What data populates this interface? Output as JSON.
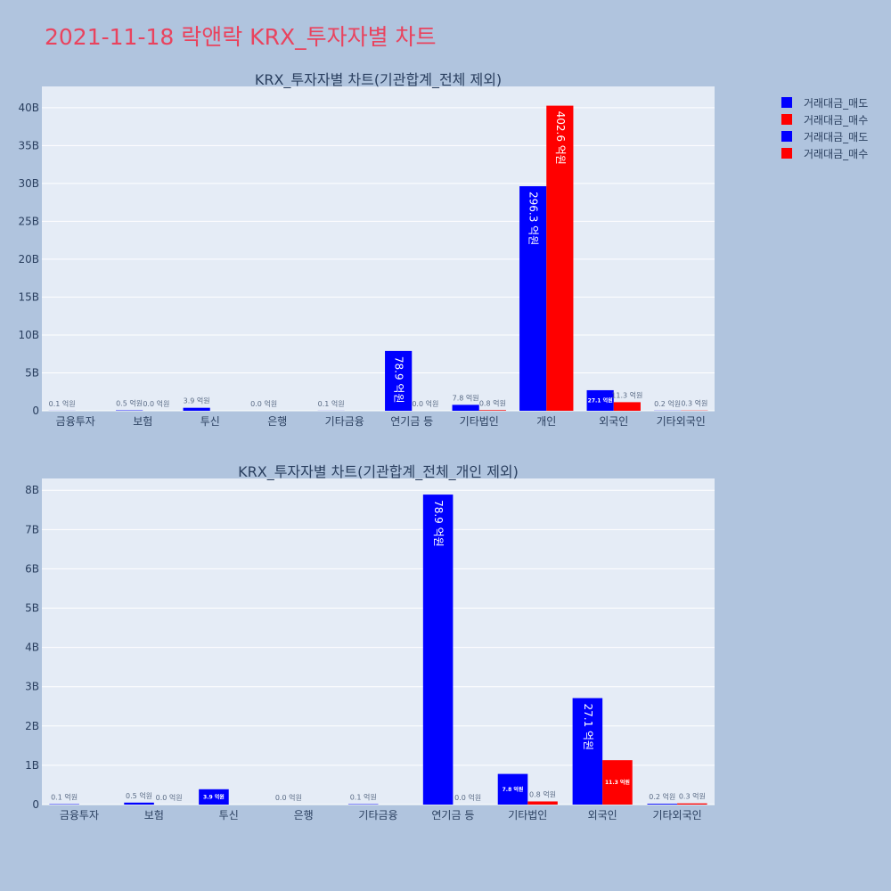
{
  "page": {
    "title": "2021-11-18 락앤락 KRX_투자자별 차트",
    "background": "#b0c4de",
    "title_color": "#e9435e"
  },
  "legend": {
    "items": [
      {
        "label": "거래대금_매도",
        "color": "#0000ff"
      },
      {
        "label": "거래대금_매수",
        "color": "#ff0000"
      },
      {
        "label": "거래대금_매도",
        "color": "#0000ff"
      },
      {
        "label": "거래대금_매수",
        "color": "#ff0000"
      }
    ]
  },
  "chart_data": [
    {
      "type": "bar",
      "title": "KRX_투자자별 차트(기관합계_전체 제외)",
      "categories": [
        "금융투자",
        "보험",
        "투신",
        "은행",
        "기타금융",
        "연기금 등",
        "기타법인",
        "개인",
        "외국인",
        "기타외국인"
      ],
      "series": [
        {
          "name": "거래대금_매도",
          "color": "#0000ff",
          "values": [
            0.01,
            0.05,
            0.39,
            0.0,
            0.01,
            7.89,
            0.78,
            29.63,
            2.71,
            0.02
          ],
          "labels": [
            "0.1 억원",
            "0.5 억원",
            "3.9 억원",
            "0.0 억원",
            "0.1 억원",
            "78.9 억원",
            "7.8 억원",
            "296.3 억원",
            "27.1 억원",
            "0.2 억원"
          ]
        },
        {
          "name": "거래대금_매수",
          "color": "#ff0000",
          "values": [
            0.0,
            0.0,
            0.0,
            0.0,
            0.0,
            0.0,
            0.08,
            40.26,
            1.13,
            0.03
          ],
          "labels": [
            "",
            "0.0 억원",
            "",
            "",
            "",
            "0.0 억원",
            "0.8 억원",
            "402.6 억원",
            "11.3 억원",
            "0.3 억원"
          ]
        }
      ],
      "yticks": [
        0,
        5,
        10,
        15,
        20,
        25,
        30,
        35,
        40
      ],
      "ytick_labels": [
        "0",
        "5B",
        "10B",
        "15B",
        "20B",
        "25B",
        "30B",
        "35B",
        "40B"
      ],
      "ylim": [
        0,
        42.8
      ],
      "grid": true,
      "legend": "top-right"
    },
    {
      "type": "bar",
      "title": "KRX_투자자별 차트(기관합계_전체_개인 제외)",
      "categories": [
        "금융투자",
        "보험",
        "투신",
        "은행",
        "기타금융",
        "연기금 등",
        "기타법인",
        "외국인",
        "기타외국인"
      ],
      "series": [
        {
          "name": "거래대금_매도",
          "color": "#0000ff",
          "values": [
            0.01,
            0.05,
            0.39,
            0.0,
            0.01,
            7.89,
            0.78,
            2.71,
            0.02
          ],
          "labels": [
            "0.1 억원",
            "0.5 억원",
            "3.9 억원",
            "0.0 억원",
            "0.1 억원",
            "78.9 억원",
            "7.8 억원",
            "27.1 억원",
            "0.2 억원"
          ]
        },
        {
          "name": "거래대금_매수",
          "color": "#ff0000",
          "values": [
            0.0,
            0.0,
            0.0,
            0.0,
            0.0,
            0.0,
            0.08,
            1.13,
            0.03
          ],
          "labels": [
            "",
            "0.0 억원",
            "",
            "",
            "",
            "0.0 억원",
            "0.8 억원",
            "11.3 억원",
            "0.3 억원"
          ]
        }
      ],
      "yticks": [
        0,
        1,
        2,
        3,
        4,
        5,
        6,
        7,
        8
      ],
      "ytick_labels": [
        "0",
        "1B",
        "2B",
        "3B",
        "4B",
        "5B",
        "6B",
        "7B",
        "8B"
      ],
      "ylim": [
        0,
        8.3
      ],
      "grid": true
    }
  ]
}
